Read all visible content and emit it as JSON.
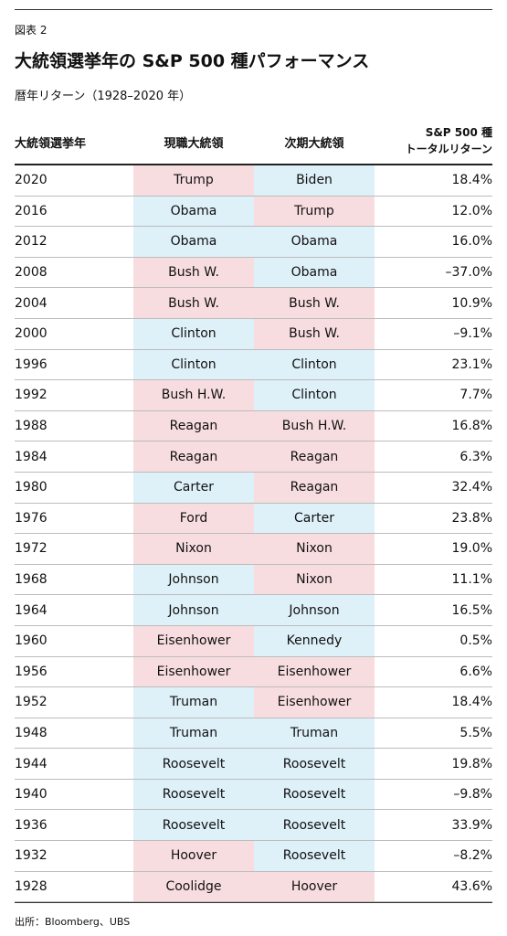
{
  "figure_label": "図表 2",
  "title": "大統領選挙年の S&P 500 種パフォーマンス",
  "subtitle": "暦年リターン（1928–2020 年）",
  "colors": {
    "republican": "#f8dde0",
    "democrat": "#def0f8"
  },
  "headers": {
    "year": "大統領選挙年",
    "current": "現職大統領",
    "next": "次期大統領",
    "return_line1": "S&P 500 種",
    "return_line2": "トータルリターン"
  },
  "rows": [
    {
      "year": "2020",
      "current": "Trump",
      "current_party": "rep",
      "next": "Biden",
      "next_party": "dem",
      "ret": "18.4%"
    },
    {
      "year": "2016",
      "current": "Obama",
      "current_party": "dem",
      "next": "Trump",
      "next_party": "rep",
      "ret": "12.0%"
    },
    {
      "year": "2012",
      "current": "Obama",
      "current_party": "dem",
      "next": "Obama",
      "next_party": "dem",
      "ret": "16.0%"
    },
    {
      "year": "2008",
      "current": "Bush W.",
      "current_party": "rep",
      "next": "Obama",
      "next_party": "dem",
      "ret": "–37.0%"
    },
    {
      "year": "2004",
      "current": "Bush W.",
      "current_party": "rep",
      "next": "Bush W.",
      "next_party": "rep",
      "ret": "10.9%"
    },
    {
      "year": "2000",
      "current": "Clinton",
      "current_party": "dem",
      "next": "Bush W.",
      "next_party": "rep",
      "ret": "–9.1%"
    },
    {
      "year": "1996",
      "current": "Clinton",
      "current_party": "dem",
      "next": "Clinton",
      "next_party": "dem",
      "ret": "23.1%"
    },
    {
      "year": "1992",
      "current": "Bush H.W.",
      "current_party": "rep",
      "next": "Clinton",
      "next_party": "dem",
      "ret": "7.7%"
    },
    {
      "year": "1988",
      "current": "Reagan",
      "current_party": "rep",
      "next": "Bush H.W.",
      "next_party": "rep",
      "ret": "16.8%"
    },
    {
      "year": "1984",
      "current": "Reagan",
      "current_party": "rep",
      "next": "Reagan",
      "next_party": "rep",
      "ret": "6.3%"
    },
    {
      "year": "1980",
      "current": "Carter",
      "current_party": "dem",
      "next": "Reagan",
      "next_party": "rep",
      "ret": "32.4%"
    },
    {
      "year": "1976",
      "current": "Ford",
      "current_party": "rep",
      "next": "Carter",
      "next_party": "dem",
      "ret": "23.8%"
    },
    {
      "year": "1972",
      "current": "Nixon",
      "current_party": "rep",
      "next": "Nixon",
      "next_party": "rep",
      "ret": "19.0%"
    },
    {
      "year": "1968",
      "current": "Johnson",
      "current_party": "dem",
      "next": "Nixon",
      "next_party": "rep",
      "ret": "11.1%"
    },
    {
      "year": "1964",
      "current": "Johnson",
      "current_party": "dem",
      "next": "Johnson",
      "next_party": "dem",
      "ret": "16.5%"
    },
    {
      "year": "1960",
      "current": "Eisenhower",
      "current_party": "rep",
      "next": "Kennedy",
      "next_party": "dem",
      "ret": "0.5%"
    },
    {
      "year": "1956",
      "current": "Eisenhower",
      "current_party": "rep",
      "next": "Eisenhower",
      "next_party": "rep",
      "ret": "6.6%"
    },
    {
      "year": "1952",
      "current": "Truman",
      "current_party": "dem",
      "next": "Eisenhower",
      "next_party": "rep",
      "ret": "18.4%"
    },
    {
      "year": "1948",
      "current": "Truman",
      "current_party": "dem",
      "next": "Truman",
      "next_party": "dem",
      "ret": "5.5%"
    },
    {
      "year": "1944",
      "current": "Roosevelt",
      "current_party": "dem",
      "next": "Roosevelt",
      "next_party": "dem",
      "ret": "19.8%"
    },
    {
      "year": "1940",
      "current": "Roosevelt",
      "current_party": "dem",
      "next": "Roosevelt",
      "next_party": "dem",
      "ret": "–9.8%"
    },
    {
      "year": "1936",
      "current": "Roosevelt",
      "current_party": "dem",
      "next": "Roosevelt",
      "next_party": "dem",
      "ret": "33.9%"
    },
    {
      "year": "1932",
      "current": "Hoover",
      "current_party": "rep",
      "next": "Roosevelt",
      "next_party": "dem",
      "ret": "–8.2%"
    },
    {
      "year": "1928",
      "current": "Coolidge",
      "current_party": "rep",
      "next": "Hoover",
      "next_party": "rep",
      "ret": "43.6%"
    }
  ],
  "source": "出所：Bloomberg、UBS"
}
